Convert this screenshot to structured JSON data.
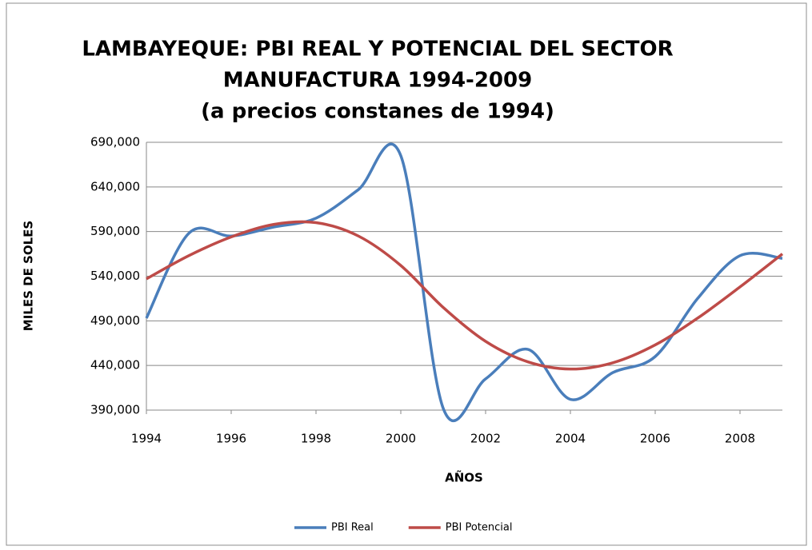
{
  "chart_data": {
    "type": "line",
    "title": [
      "LAMBAYEQUE: PBI REAL Y POTENCIAL DEL SECTOR",
      "MANUFACTURA 1994-2009",
      "(a precios constanes de 1994)"
    ],
    "xlabel": "AÑOS",
    "ylabel": "MILES DE SOLES",
    "x": [
      1994,
      1995,
      1996,
      1997,
      1998,
      1999,
      2000,
      2001,
      2002,
      2003,
      2004,
      2005,
      2006,
      2007,
      2008,
      2009
    ],
    "series": [
      {
        "name": "PBI Real",
        "color": "#4a7ebb",
        "values": [
          493000,
          588000,
          585000,
          595000,
          605000,
          637000,
          675000,
          392000,
          425000,
          458000,
          402000,
          432000,
          450000,
          515000,
          563000,
          560000
        ]
      },
      {
        "name": "PBI Potencial",
        "color": "#be4b48",
        "values": [
          537000,
          563000,
          584000,
          598000,
          600000,
          585000,
          552000,
          505000,
          467000,
          444000,
          436000,
          443000,
          463000,
          493000,
          528000,
          565000
        ]
      }
    ],
    "xlim": [
      1994,
      2009
    ],
    "xticks": [
      1994,
      1996,
      1998,
      2000,
      2002,
      2004,
      2006,
      2008
    ],
    "ylim": [
      390000,
      690000
    ],
    "yticks": [
      {
        "value": 390000,
        "label": "390,000"
      },
      {
        "value": 440000,
        "label": "440,000"
      },
      {
        "value": 490000,
        "label": "490,000"
      },
      {
        "value": 540000,
        "label": "540,000"
      },
      {
        "value": 590000,
        "label": "590,000"
      },
      {
        "value": 640000,
        "label": "640,000"
      },
      {
        "value": 690000,
        "label": "690,000"
      }
    ],
    "grid": true,
    "legend": "bottom"
  }
}
